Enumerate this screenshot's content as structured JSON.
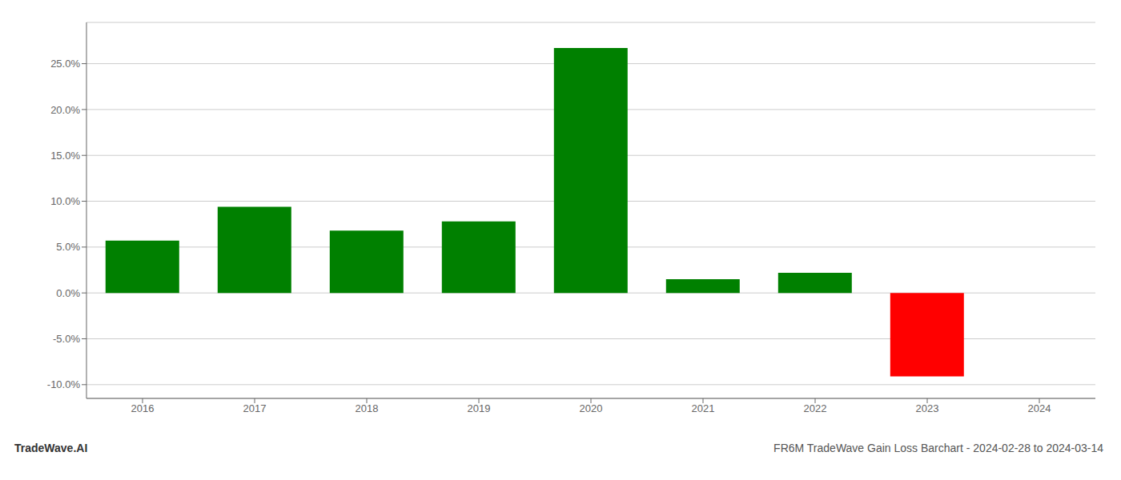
{
  "chart_data": {
    "type": "bar",
    "categories": [
      "2016",
      "2017",
      "2018",
      "2019",
      "2020",
      "2021",
      "2022",
      "2023",
      "2024"
    ],
    "values": [
      0.057,
      0.094,
      0.068,
      0.078,
      0.267,
      0.015,
      0.022,
      -0.091,
      null
    ],
    "colors": [
      "#008000",
      "#008000",
      "#008000",
      "#008000",
      "#008000",
      "#008000",
      "#008000",
      "#ff0000",
      null
    ],
    "ylim": [
      -0.115,
      0.295
    ],
    "yticks": [
      {
        "value": -0.1,
        "label": "-10.0%"
      },
      {
        "value": -0.05,
        "label": "-5.0%"
      },
      {
        "value": 0.0,
        "label": "0.0%"
      },
      {
        "value": 0.05,
        "label": "5.0%"
      },
      {
        "value": 0.1,
        "label": "10.0%"
      },
      {
        "value": 0.15,
        "label": "15.0%"
      },
      {
        "value": 0.2,
        "label": "20.0%"
      },
      {
        "value": 0.25,
        "label": "25.0%"
      }
    ],
    "grid": true,
    "annotations": [
      "TradeWave.AI",
      "FR6M TradeWave Gain Loss Barchart - 2024-02-28 to 2024-03-14"
    ]
  }
}
